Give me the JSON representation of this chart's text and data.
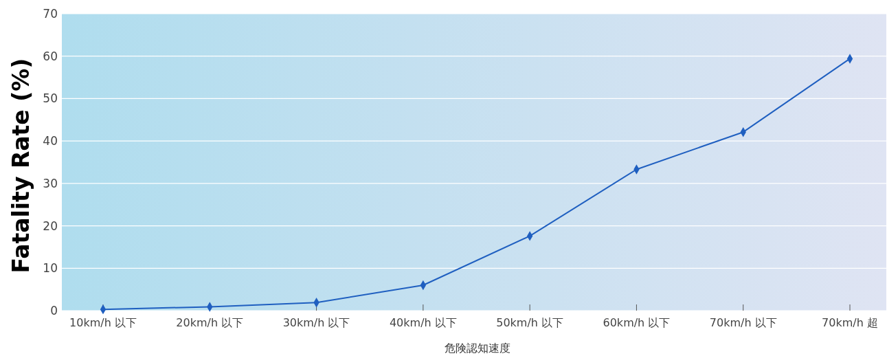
{
  "chart_data": {
    "type": "line",
    "ylabel": "Fatality Rate (%)",
    "xlabel": "危険認知速度",
    "categories": [
      "10km/h 以下",
      "20km/h 以下",
      "30km/h 以下",
      "40km/h 以下",
      "50km/h 以下",
      "60km/h 以下",
      "70km/h 以下",
      "70km/h 超"
    ],
    "series": [
      {
        "color": "#1f5fc0",
        "values": [
          0.3,
          0.9,
          1.9,
          6.0,
          17.6,
          33.3,
          42.1,
          59.4
        ]
      }
    ],
    "ylim": [
      0,
      70
    ],
    "yticks": [
      0,
      10,
      20,
      30,
      40,
      50,
      60,
      70
    ],
    "grid": "y",
    "marker": "diamond",
    "line_style": "solid"
  }
}
